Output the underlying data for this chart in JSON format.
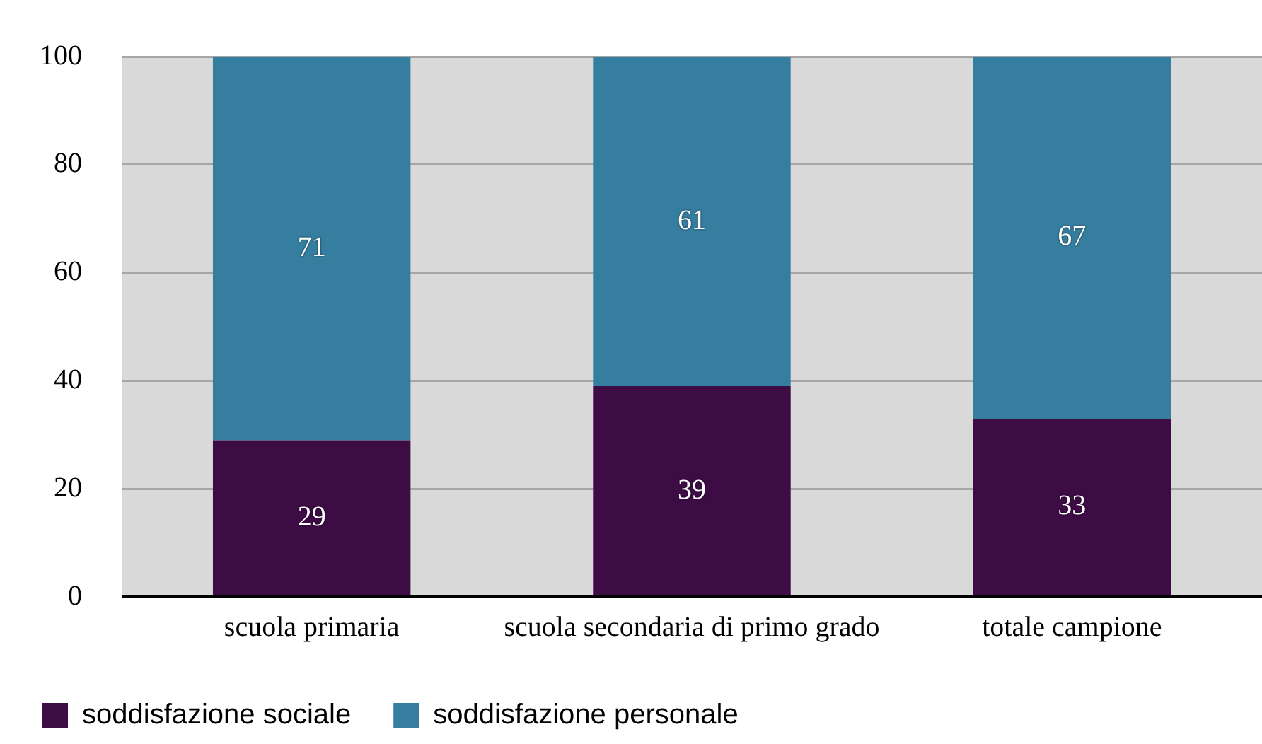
{
  "chart_data": {
    "type": "bar",
    "stacked": true,
    "categories": [
      "scuola primaria",
      "scuola secondaria di primo grado",
      "totale campione"
    ],
    "series": [
      {
        "name": "soddisfazione sociale",
        "color": "#3d0c45",
        "values": [
          29,
          39,
          33
        ]
      },
      {
        "name": "soddisfazione personale",
        "color": "#367ea0",
        "values": [
          71,
          61,
          67
        ]
      }
    ],
    "ylim": [
      0,
      100
    ],
    "yticks": [
      0,
      20,
      40,
      60,
      80,
      100
    ],
    "grid": "y",
    "legend": "bottom",
    "data_labels": true
  }
}
